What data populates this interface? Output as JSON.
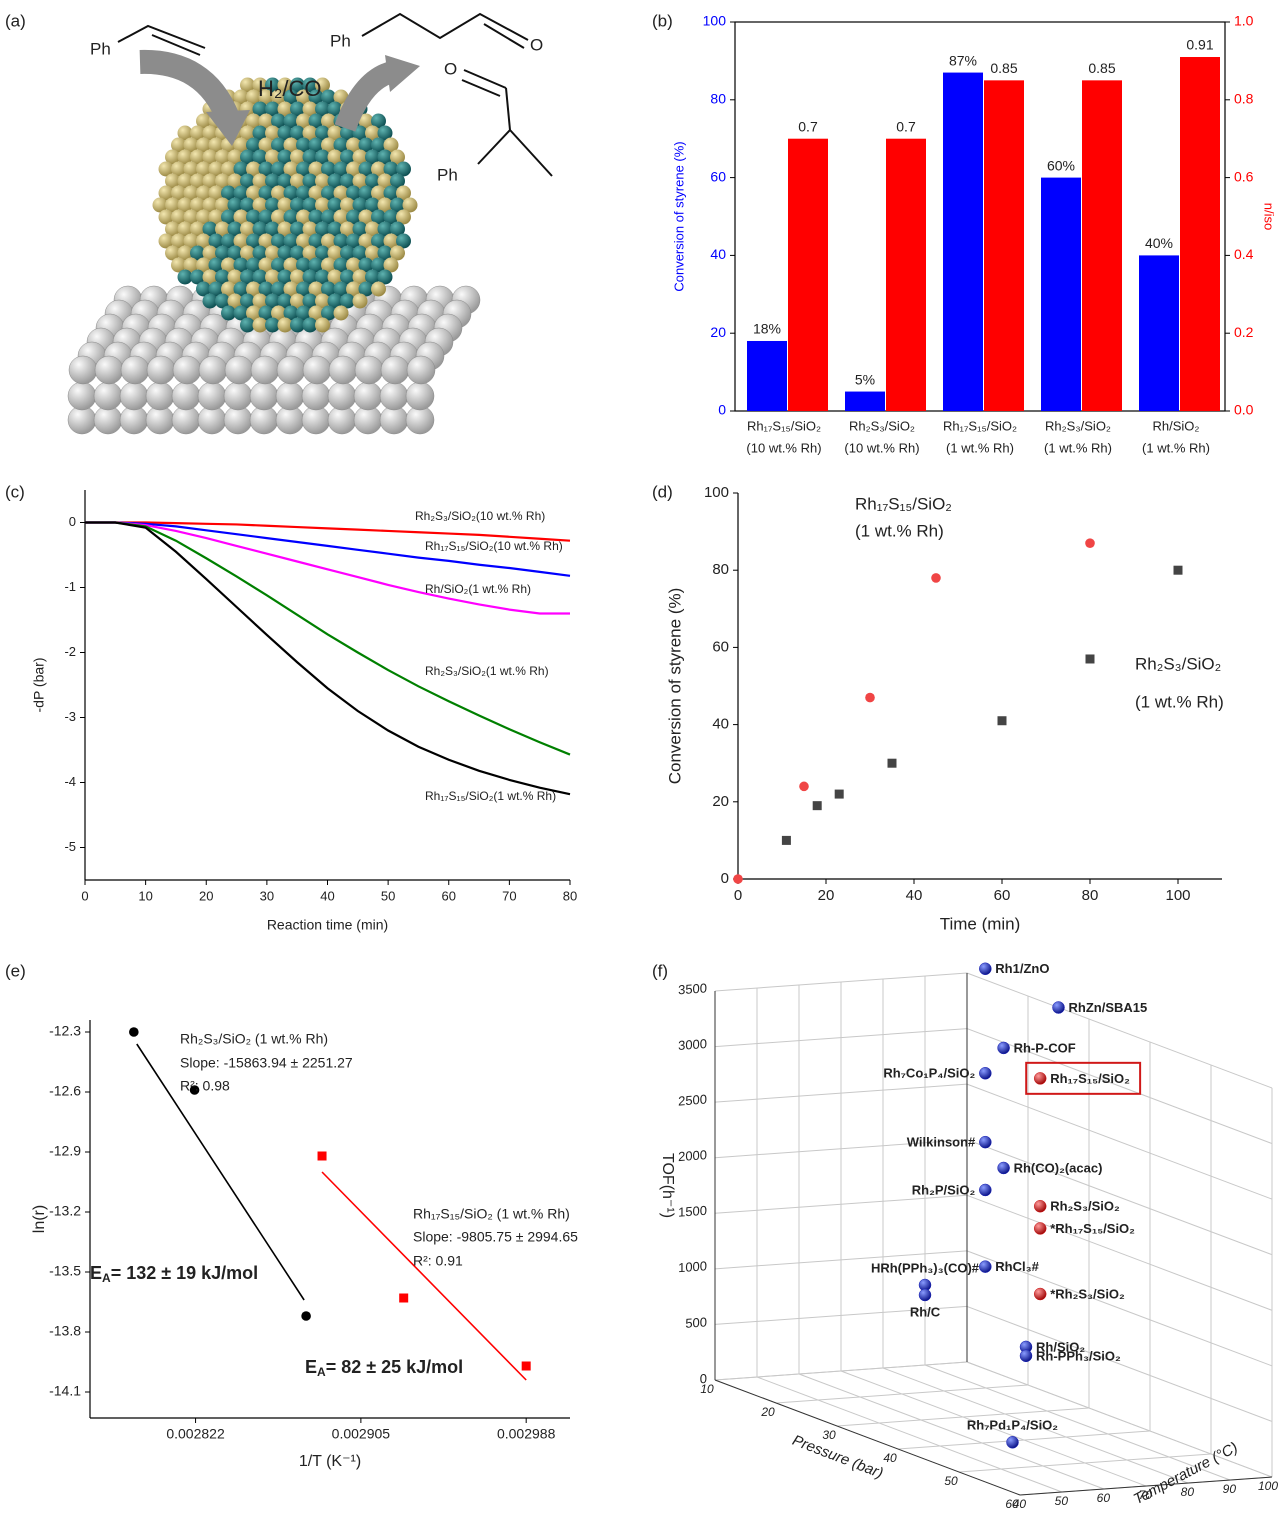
{
  "illustration": {
    "label": "(a)",
    "reagent": "H₂/CO",
    "phenyl": [
      "Ph",
      "Ph",
      "Ph"
    ],
    "oxygen": [
      "O",
      "O"
    ]
  },
  "chart_data": [
    {
      "type": "bar",
      "label": "(b)",
      "categories": [
        [
          "Rh₁₇S₁₅/SiO₂",
          "(10 wt.% Rh)"
        ],
        [
          "Rh₂S₃/SiO₂",
          "(10 wt.% Rh)"
        ],
        [
          "Rh₁₇S₁₅/SiO₂",
          "(1 wt.% Rh)"
        ],
        [
          "Rh₂S₃/SiO₂",
          "(1 wt.% Rh)"
        ],
        [
          "Rh/SiO₂",
          "(1 wt.% Rh)"
        ]
      ],
      "series": [
        {
          "color": "#0000ff",
          "values": [
            18,
            5,
            87,
            60,
            40
          ],
          "value_labels": [
            "18%",
            "5%",
            "87%",
            "60%",
            "40%"
          ]
        },
        {
          "color": "#ff0000",
          "axis": "y2",
          "values": [
            0.7,
            0.7,
            0.85,
            0.85,
            0.91
          ]
        }
      ],
      "ylabel": "Conversion of styrene (%)",
      "y2label": "n/iso",
      "ylim": [
        0,
        100
      ],
      "yticks": [
        0,
        20,
        40,
        60,
        80,
        100
      ],
      "y2lim": [
        0,
        1
      ],
      "y2ticks": [
        {
          "value": 0,
          "label": "0.0"
        },
        0.2,
        0.4,
        0.6,
        0.8,
        {
          "value": 1,
          "label": "1.0"
        }
      ]
    },
    {
      "type": "line",
      "label": "(c)",
      "x": [
        0,
        5,
        10,
        15,
        20,
        25,
        30,
        35,
        40,
        45,
        50,
        55,
        60,
        65,
        70,
        75,
        80
      ],
      "series": [
        {
          "name": "Rh₂S₃/SiO₂(10 wt.% Rh)",
          "color": "#ff0000",
          "values": [
            0,
            0,
            0,
            -0.01,
            -0.02,
            -0.03,
            -0.05,
            -0.07,
            -0.09,
            -0.11,
            -0.13,
            -0.15,
            -0.17,
            -0.19,
            -0.22,
            -0.25,
            -0.28
          ]
        },
        {
          "name": "Rh₁₇S₁₅/SiO₂(10 wt.% Rh)",
          "color": "#0000ff",
          "values": [
            0,
            0,
            -0.02,
            -0.06,
            -0.12,
            -0.18,
            -0.24,
            -0.3,
            -0.36,
            -0.42,
            -0.48,
            -0.54,
            -0.59,
            -0.65,
            -0.7,
            -0.76,
            -0.82
          ]
        },
        {
          "name": "Rh/SiO₂(1 wt.% Rh)",
          "color": "#ff00ff",
          "values": [
            0,
            0,
            -0.04,
            -0.13,
            -0.24,
            -0.36,
            -0.48,
            -0.6,
            -0.72,
            -0.84,
            -0.96,
            -1.07,
            -1.17,
            -1.26,
            -1.34,
            -1.4,
            -1.4
          ]
        },
        {
          "name": "Rh₂S₃/SiO₂(1 wt.% Rh)",
          "color": "#008000",
          "values": [
            0,
            0,
            -0.06,
            -0.28,
            -0.55,
            -0.83,
            -1.12,
            -1.42,
            -1.72,
            -2.0,
            -2.27,
            -2.52,
            -2.75,
            -2.97,
            -3.18,
            -3.38,
            -3.57
          ]
        },
        {
          "name": "Rh₁₇S₁₅/SiO₂(1 wt.% Rh)",
          "color": "#000000",
          "values": [
            0,
            0,
            -0.08,
            -0.45,
            -0.87,
            -1.3,
            -1.73,
            -2.15,
            -2.55,
            -2.9,
            -3.2,
            -3.45,
            -3.65,
            -3.82,
            -3.96,
            -4.08,
            -4.18
          ]
        }
      ],
      "xlabel": "Reaction time (min)",
      "ylabel": "-dP (bar)",
      "xlim": [
        0,
        80
      ],
      "xticks": [
        0,
        10,
        20,
        30,
        40,
        50,
        60,
        70,
        80
      ],
      "ylim": [
        -5.5,
        0.5
      ],
      "yticks": [
        0,
        -1,
        -2,
        -3,
        -4,
        -5
      ]
    },
    {
      "type": "scatter",
      "label": "(d)",
      "series": [
        {
          "color": "#f04545",
          "marker": "circle",
          "x": [
            0,
            15,
            30,
            45,
            80
          ],
          "values": [
            0,
            24,
            47,
            78,
            87
          ]
        },
        {
          "color": "#444444",
          "marker": "square",
          "x": [
            11,
            18,
            23,
            35,
            60,
            80,
            100
          ],
          "values": [
            10,
            19,
            22,
            30,
            41,
            57,
            80
          ]
        }
      ],
      "annotations": [
        "Rh₁₇S₁₅/SiO₂",
        "(1 wt.% Rh)",
        "Rh₂S₃/SiO₂",
        "(1 wt.% Rh)"
      ],
      "xlabel": "Time (min)",
      "ylabel": "Conversion of styrene (%)",
      "xlim": [
        0,
        110
      ],
      "xticks": [
        0,
        20,
        40,
        60,
        80,
        100
      ],
      "ylim": [
        0,
        100
      ],
      "yticks": [
        0,
        20,
        40,
        60,
        80,
        100
      ]
    },
    {
      "type": "scatter",
      "label": "(e)",
      "series": [
        {
          "color": "#000000",
          "marker": "circle",
          "x": [
            0.002791,
            0.0028215,
            0.0028775
          ],
          "values": [
            -12.3,
            -12.59,
            -13.72
          ]
        },
        {
          "color": "#000000",
          "marker": "line",
          "x": [
            0.0027925,
            0.0028765
          ],
          "values": [
            -12.36,
            -13.64
          ]
        },
        {
          "color": "#ff0000",
          "marker": "square",
          "x": [
            0.0028855,
            0.0029265,
            0.002988
          ],
          "values": [
            -12.92,
            -13.63,
            -13.97
          ]
        },
        {
          "color": "#ff0000",
          "marker": "line",
          "x": [
            0.0028855,
            0.002988
          ],
          "values": [
            -13.0,
            -14.04
          ]
        }
      ],
      "annotations": [
        "Rh₂S₃/SiO₂ (1 wt.% Rh)",
        "Slope: -15863.94 ± 2251.27",
        "R²: 0.98",
        "Rh₁₇S₁₅/SiO₂ (1 wt.% Rh)",
        "Slope: -9805.75 ± 2994.65",
        "R²: 0.91"
      ],
      "energy_labels": [
        [
          "E",
          "A",
          "= 132 ± 19 kJ/mol"
        ],
        [
          "E",
          "A",
          "= 82 ± 25 kJ/mol"
        ]
      ],
      "xlabel": "1/T (K⁻¹)",
      "ylabel": "ln(r)",
      "xlim": [
        0.002769,
        0.00301
      ],
      "xticks": [
        0.002822,
        0.002905,
        0.002988
      ],
      "ylim": [
        -14.23,
        -12.24
      ],
      "yticks": [
        -12.3,
        -12.6,
        -12.9,
        -13.2,
        -13.5,
        -13.8,
        -14.1
      ]
    },
    {
      "type": "scatter3d",
      "label": "(f)",
      "xlabel": "Pressure (bar)",
      "ylabel": "Temperature (°C)",
      "zlabel": "TOF(h⁻¹)",
      "xlim": [
        10,
        60
      ],
      "xticks": [
        10,
        20,
        30,
        40,
        50,
        60
      ],
      "ylim": [
        40,
        100
      ],
      "yticks": [
        40,
        50,
        60,
        70,
        80,
        90,
        100
      ],
      "zlim": [
        0,
        3500
      ],
      "zticks": [
        0,
        500,
        1000,
        1500,
        2000,
        2500,
        3000,
        3500
      ],
      "series": [
        {
          "color": "#1a22b8",
          "labels": [
            "Rh1/ZnO",
            "RhZn/SBA15",
            "Rh-P-COF",
            "Rh₇Co₁P₄/SiO₂",
            "Wilkinson#",
            "Rh(CO)₂(acac)",
            "Rh₂P/SiO₂",
            "RhCl₃#",
            "HRh(PPh₃)₃(CO)#",
            "Rh/C",
            "Rh/SiO₂",
            "Rh-PPh₃/SiO₂",
            "Rh₇Pd₁P₄/SiO₂"
          ],
          "x": [
            13,
            25,
            16,
            13,
            13,
            16,
            13,
            13,
            10,
            10,
            30,
            30,
            45
          ],
          "y": [
            100,
            100,
            100,
            100,
            100,
            100,
            100,
            100,
            90,
            90,
            85,
            85,
            60
          ],
          "z": [
            3600,
            3500,
            2950,
            2660,
            2040,
            1870,
            1610,
            920,
            720,
            630,
            590,
            510,
            110
          ]
        },
        {
          "color": "#d01818",
          "labels": [
            "Rh₁₇S₁₅/SiO₂",
            "Rh₂S₃/SiO₂",
            "*Rh₁₇S₁₅/SiO₂",
            "*Rh₂S₃/SiO₂"
          ],
          "x": [
            22,
            22,
            22,
            22
          ],
          "y": [
            100,
            100,
            100,
            100
          ],
          "z": [
            2800,
            1650,
            1450,
            860
          ]
        }
      ]
    }
  ]
}
